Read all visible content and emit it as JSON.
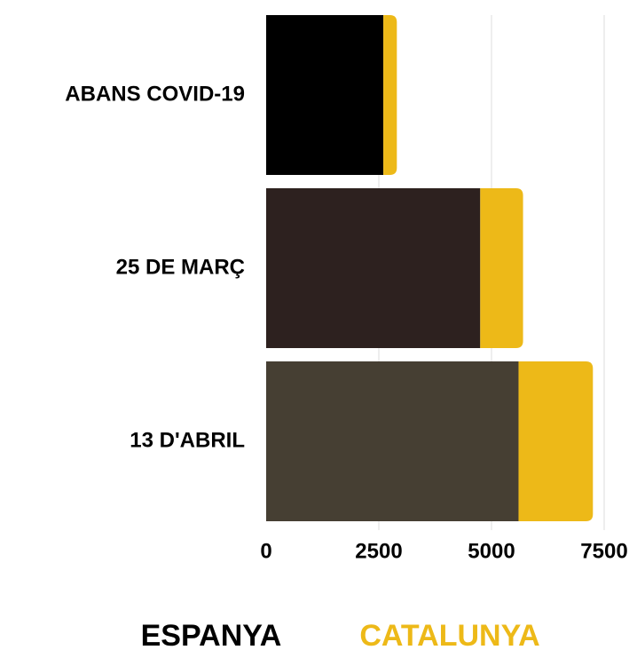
{
  "chart_data": {
    "type": "bar",
    "orientation": "horizontal",
    "stacked": true,
    "categories": [
      "ABANS COVID-19",
      "25 DE MARÇ",
      "13 D'ABRIL"
    ],
    "series": [
      {
        "name": "ESPANYA",
        "color": "#000000",
        "colors": [
          "#000000",
          "#2d211f",
          "#463f33"
        ],
        "values": [
          2600,
          4750,
          5600
        ]
      },
      {
        "name": "CATALUNYA",
        "color": "#edb918",
        "values": [
          300,
          950,
          1650
        ]
      }
    ],
    "xlim": [
      0,
      7500
    ],
    "xticks": [
      0,
      2500,
      5000,
      7500
    ],
    "grid": true
  }
}
